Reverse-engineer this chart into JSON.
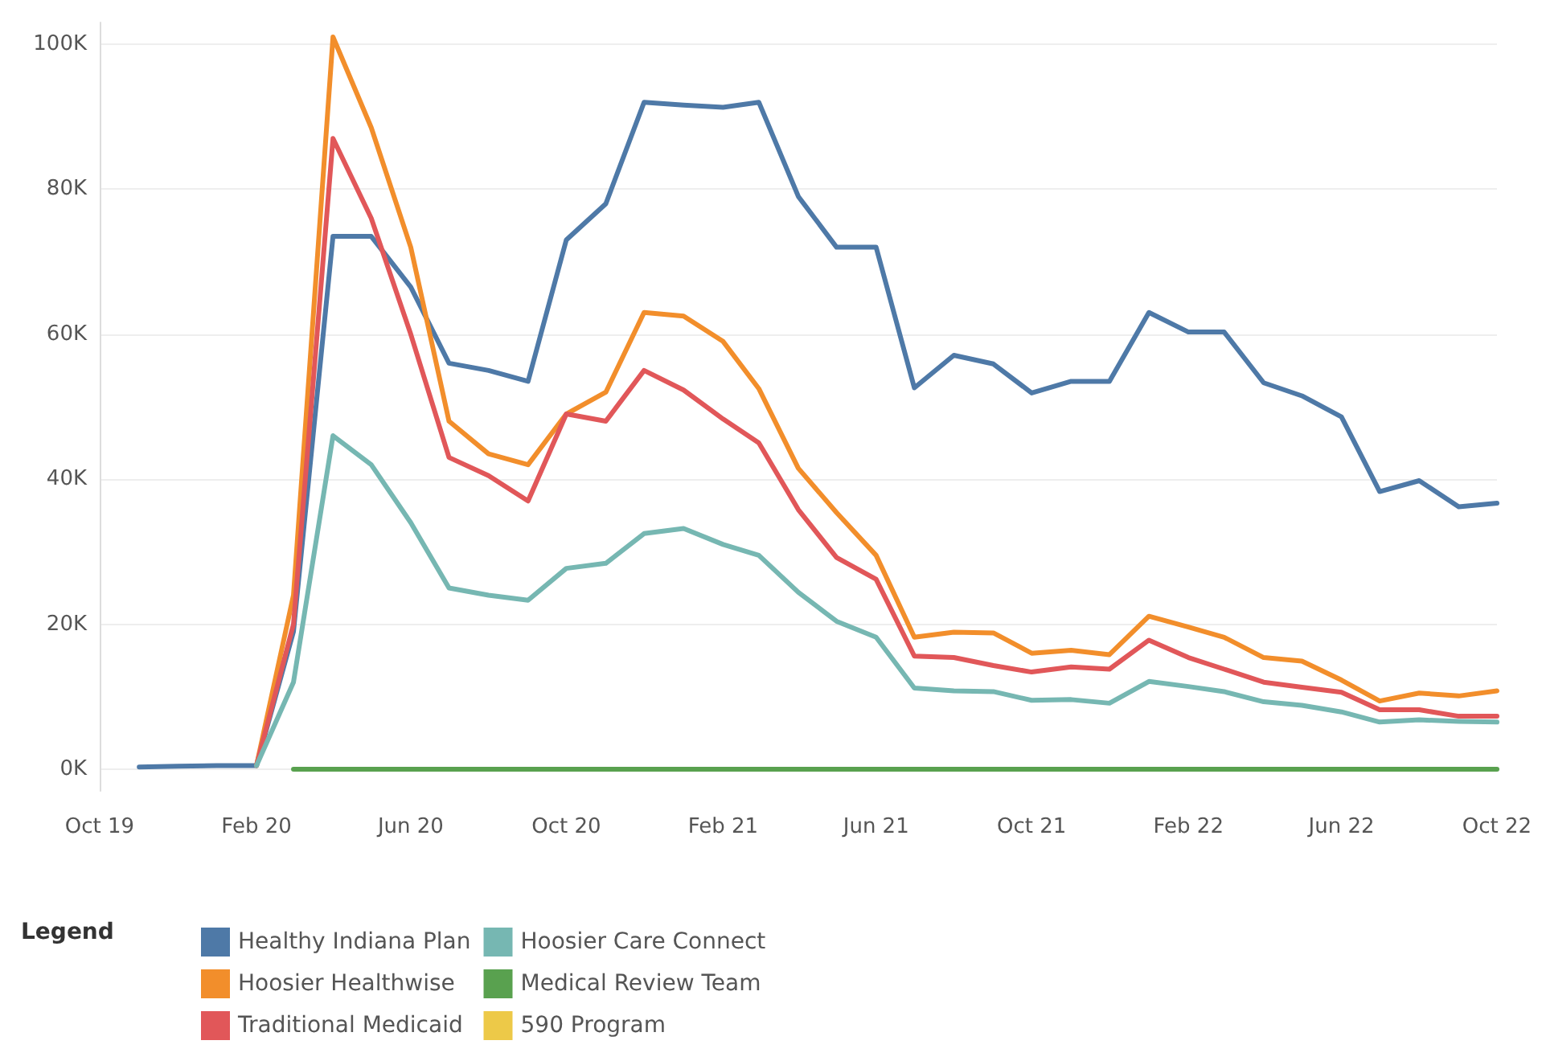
{
  "chart_data": {
    "type": "line",
    "x": [
      "2019-11",
      "2019-12",
      "2020-01",
      "2020-02",
      "2020-03",
      "2020-04",
      "2020-05",
      "2020-06",
      "2020-07",
      "2020-08",
      "2020-09",
      "2020-10",
      "2020-11",
      "2020-12",
      "2021-01",
      "2021-02",
      "2021-03",
      "2021-04",
      "2021-05",
      "2021-06",
      "2021-07",
      "2021-08",
      "2021-09",
      "2021-10",
      "2021-11",
      "2021-12",
      "2022-01",
      "2022-02",
      "2022-03",
      "2022-04",
      "2022-05",
      "2022-06",
      "2022-07",
      "2022-08",
      "2022-09",
      "2022-10"
    ],
    "series": [
      {
        "name": "Healthy Indiana Plan",
        "color": "#4e79a7",
        "values": [
          300,
          400,
          500,
          500,
          19000,
          73500,
          73500,
          66500,
          56000,
          55000,
          53500,
          73000,
          78000,
          92000,
          91600,
          91300,
          92000,
          79000,
          72000,
          72000,
          52600,
          57100,
          55900,
          51900,
          53500,
          53500,
          63000,
          60300,
          60300,
          53300,
          51500,
          48600,
          38300,
          39800,
          36200,
          36700
        ]
      },
      {
        "name": "Hoosier Healthwise",
        "color": "#f28e2b",
        "values": [
          null,
          null,
          null,
          500,
          24000,
          101000,
          88500,
          72000,
          48000,
          43500,
          42000,
          49000,
          52000,
          63000,
          62500,
          59000,
          52500,
          41500,
          35400,
          29500,
          18200,
          18900,
          18800,
          16000,
          16400,
          15800,
          21100,
          19600,
          18200,
          15400,
          14900,
          12300,
          9400,
          10500,
          10100,
          10800
        ]
      },
      {
        "name": "Traditional Medicaid",
        "color": "#e15759",
        "values": [
          null,
          null,
          null,
          500,
          20000,
          87000,
          76000,
          60000,
          43000,
          40500,
          37000,
          49000,
          48000,
          55000,
          52300,
          48300,
          45000,
          35800,
          29200,
          26200,
          15600,
          15400,
          14300,
          13400,
          14100,
          13800,
          17800,
          15400,
          13800,
          12000,
          11300,
          10600,
          8200,
          8200,
          7300,
          7300
        ]
      },
      {
        "name": "Hoosier Care Connect",
        "color": "#76b7b2",
        "values": [
          null,
          null,
          null,
          500,
          12000,
          46000,
          42000,
          34000,
          25000,
          24000,
          23300,
          27700,
          28400,
          32500,
          33200,
          31000,
          29500,
          24400,
          20400,
          18200,
          11200,
          10800,
          10700,
          9500,
          9600,
          9100,
          12100,
          11400,
          10700,
          9300,
          8800,
          7900,
          6500,
          6800,
          6600,
          6500
        ]
      },
      {
        "name": "Medical Review Team",
        "color": "#59a14f",
        "values": [
          null,
          null,
          null,
          null,
          0,
          0,
          0,
          0,
          0,
          0,
          0,
          0,
          0,
          0,
          0,
          0,
          0,
          0,
          0,
          0,
          0,
          0,
          0,
          0,
          0,
          0,
          0,
          0,
          0,
          0,
          0,
          0,
          0,
          0,
          0,
          0
        ]
      },
      {
        "name": "590 Program",
        "color": "#edc948",
        "values": [
          null,
          null,
          null,
          null,
          null,
          null,
          null,
          null,
          null,
          null,
          null,
          null,
          null,
          null,
          null,
          null,
          null,
          null,
          null,
          null,
          null,
          null,
          null,
          null,
          null,
          null,
          null,
          null,
          null,
          null,
          null,
          null,
          null,
          null,
          null,
          null
        ]
      }
    ],
    "xlim": [
      "2019-10",
      "2022-10"
    ],
    "xticks": [
      {
        "value": "2019-10",
        "label": "Oct 19"
      },
      {
        "value": "2020-02",
        "label": "Feb 20"
      },
      {
        "value": "2020-06",
        "label": "Jun 20"
      },
      {
        "value": "2020-10",
        "label": "Oct 20"
      },
      {
        "value": "2021-02",
        "label": "Feb 21"
      },
      {
        "value": "2021-06",
        "label": "Jun 21"
      },
      {
        "value": "2021-10",
        "label": "Oct 21"
      },
      {
        "value": "2022-02",
        "label": "Feb 22"
      },
      {
        "value": "2022-06",
        "label": "Jun 22"
      },
      {
        "value": "2022-10",
        "label": "Oct 22"
      }
    ],
    "ylim": [
      -3000,
      103000
    ],
    "yticks": [
      {
        "value": 0,
        "label": "0K"
      },
      {
        "value": 20000,
        "label": "20K"
      },
      {
        "value": 40000,
        "label": "40K"
      },
      {
        "value": 60000,
        "label": "60K"
      },
      {
        "value": 80000,
        "label": "80K"
      },
      {
        "value": 100000,
        "label": "100K"
      }
    ],
    "grid": "y",
    "legend": "bottom",
    "legend_title": "Legend",
    "marker": "none",
    "line_style": "solid"
  }
}
